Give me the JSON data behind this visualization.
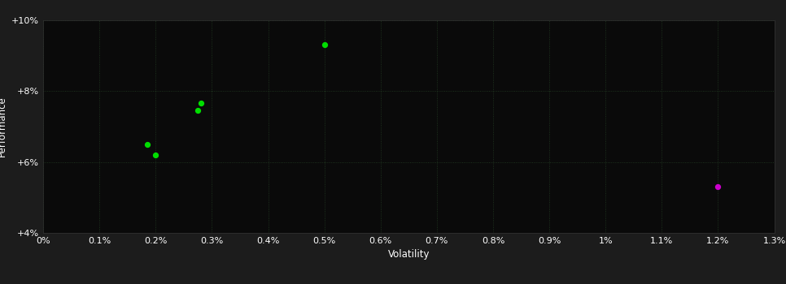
{
  "xlabel": "Volatility",
  "ylabel": "Performance",
  "outer_bg": "#1c1c1c",
  "inner_bg": "#0a0a0a",
  "text_color": "#ffffff",
  "xlim": [
    0,
    0.013
  ],
  "ylim": [
    0.04,
    0.1
  ],
  "x_ticks": [
    0.0,
    0.001,
    0.002,
    0.003,
    0.004,
    0.005,
    0.006,
    0.007,
    0.008,
    0.009,
    0.01,
    0.011,
    0.012,
    0.013
  ],
  "x_tick_labels": [
    "0%",
    "0.1%",
    "0.2%",
    "0.3%",
    "0.4%",
    "0.5%",
    "0.6%",
    "0.7%",
    "0.8%",
    "0.9%",
    "1%",
    "1.1%",
    "1.2%",
    "1.3%"
  ],
  "y_ticks": [
    0.04,
    0.06,
    0.08,
    0.1
  ],
  "y_tick_labels": [
    "+4%",
    "+6%",
    "+8%",
    "+10%"
  ],
  "green_points": [
    [
      0.002,
      0.062
    ],
    [
      0.00185,
      0.065
    ],
    [
      0.00275,
      0.0745
    ],
    [
      0.0028,
      0.0765
    ],
    [
      0.005,
      0.093
    ]
  ],
  "magenta_points": [
    [
      0.012,
      0.053
    ]
  ],
  "green_color": "#00dd00",
  "magenta_color": "#cc00cc",
  "point_size": 18,
  "dpi": 100,
  "figsize": [
    9.66,
    3.5
  ],
  "grid_color": "#2a4a2a",
  "grid_alpha": 0.8,
  "tick_fontsize": 8,
  "label_fontsize": 8.5
}
